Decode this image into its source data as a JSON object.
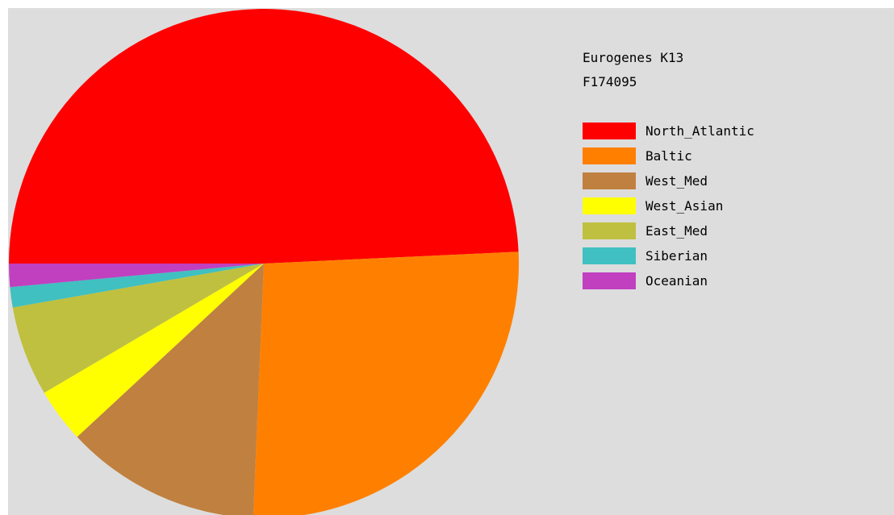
{
  "chart_data": {
    "type": "pie",
    "title_lines": [
      "Eurogenes K13",
      "F174095"
    ],
    "legend_position": "right",
    "series": [
      {
        "name": "North_Atlantic",
        "value": 50.0,
        "color": "#ff0000"
      },
      {
        "name": "Baltic",
        "value": 26.8,
        "color": "#ff8000"
      },
      {
        "name": "West_Med",
        "value": 12.6,
        "color": "#c08040"
      },
      {
        "name": "West_Asian",
        "value": 3.5,
        "color": "#ffff00"
      },
      {
        "name": "East_Med",
        "value": 5.8,
        "color": "#c0c040"
      },
      {
        "name": "Siberian",
        "value": 1.3,
        "color": "#40c0c0"
      },
      {
        "name": "Oceanian",
        "value": 1.5,
        "color": "#c040c0"
      }
    ]
  }
}
